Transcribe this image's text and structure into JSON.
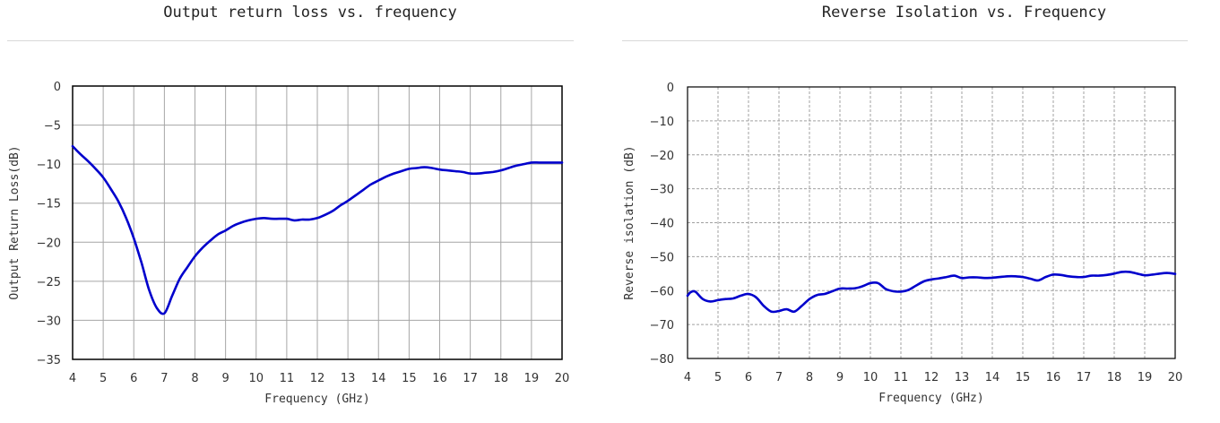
{
  "chart_data": [
    {
      "type": "line",
      "title": "Output return loss vs. frequency",
      "xlabel": "Frequency (GHz)",
      "ylabel": "Output Return Loss(dB)",
      "xlim": [
        4,
        20
      ],
      "ylim": [
        -35,
        0
      ],
      "x_ticks": [
        "4",
        "5",
        "6",
        "7",
        "8",
        "9",
        "10",
        "11",
        "12",
        "13",
        "14",
        "15",
        "16",
        "17",
        "18",
        "19",
        "20"
      ],
      "y_ticks": [
        "0",
        "-5",
        "-10",
        "-15",
        "-20",
        "-25",
        "-30",
        "-35"
      ],
      "grid": "solid",
      "line_color": "#0000cc",
      "series": [
        {
          "x": [
            4,
            4.25,
            4.5,
            4.75,
            5,
            5.25,
            5.5,
            5.75,
            6,
            6.25,
            6.5,
            6.75,
            7,
            7.25,
            7.5,
            7.75,
            8,
            8.25,
            8.5,
            8.75,
            9,
            9.25,
            9.5,
            9.75,
            10,
            10.25,
            10.5,
            10.75,
            11,
            11.25,
            11.5,
            11.75,
            12,
            12.25,
            12.5,
            12.75,
            13,
            13.25,
            13.5,
            13.75,
            14,
            14.25,
            14.5,
            14.75,
            15,
            15.25,
            15.5,
            15.75,
            16,
            16.25,
            16.5,
            16.75,
            17,
            17.25,
            17.5,
            17.75,
            18,
            18.25,
            18.5,
            18.75,
            19,
            19.25,
            19.5,
            19.75,
            20
          ],
          "values": [
            -7.7,
            -8.7,
            -9.6,
            -10.6,
            -11.7,
            -13.2,
            -14.8,
            -16.9,
            -19.5,
            -22.6,
            -26.1,
            -28.4,
            -29.1,
            -26.9,
            -24.7,
            -23.2,
            -21.8,
            -20.7,
            -19.8,
            -19.0,
            -18.5,
            -17.9,
            -17.5,
            -17.2,
            -17.0,
            -16.9,
            -17.0,
            -17.0,
            -17.0,
            -17.2,
            -17.1,
            -17.1,
            -16.9,
            -16.5,
            -16.0,
            -15.3,
            -14.7,
            -14.0,
            -13.3,
            -12.6,
            -12.1,
            -11.6,
            -11.2,
            -10.9,
            -10.6,
            -10.5,
            -10.4,
            -10.5,
            -10.7,
            -10.8,
            -10.9,
            -11.0,
            -11.2,
            -11.2,
            -11.1,
            -11.0,
            -10.8,
            -10.5,
            -10.2,
            -10.0,
            -9.8,
            -9.8,
            -9.8,
            -9.8,
            -9.8
          ]
        }
      ]
    },
    {
      "type": "line",
      "title": "Reverse Isolation vs. Frequency",
      "xlabel": "Frequency (GHz)",
      "ylabel": "Reverse isolation (dB)",
      "xlim": [
        4,
        20
      ],
      "ylim": [
        -80,
        0
      ],
      "x_ticks": [
        "4",
        "5",
        "6",
        "7",
        "8",
        "9",
        "10",
        "11",
        "12",
        "13",
        "14",
        "15",
        "16",
        "17",
        "18",
        "19",
        "20"
      ],
      "y_ticks": [
        "0",
        "-10",
        "-20",
        "-30",
        "-40",
        "-50",
        "-60",
        "-70",
        "-80"
      ],
      "grid": "dashed",
      "line_color": "#0000cc",
      "series": [
        {
          "x": [
            4,
            4.1,
            4.25,
            4.5,
            4.75,
            5,
            5.25,
            5.5,
            5.75,
            6,
            6.25,
            6.5,
            6.75,
            7,
            7.25,
            7.5,
            7.75,
            8,
            8.25,
            8.5,
            8.75,
            9,
            9.25,
            9.5,
            9.75,
            10,
            10.25,
            10.5,
            10.75,
            11,
            11.25,
            11.5,
            11.75,
            12,
            12.25,
            12.5,
            12.75,
            13,
            13.25,
            13.5,
            13.75,
            14,
            14.25,
            14.5,
            14.75,
            15,
            15.25,
            15.5,
            15.75,
            16,
            16.25,
            16.5,
            16.75,
            17,
            17.25,
            17.5,
            17.75,
            18,
            18.25,
            18.5,
            18.75,
            19,
            19.25,
            19.5,
            19.75,
            20
          ],
          "values": [
            -61.5,
            -60.5,
            -60.3,
            -62.5,
            -63.2,
            -62.8,
            -62.5,
            -62.3,
            -61.5,
            -61,
            -62,
            -64.5,
            -66.2,
            -66.0,
            -65.5,
            -66.2,
            -64.5,
            -62.5,
            -61.3,
            -61.0,
            -60.2,
            -59.4,
            -59.4,
            -59.3,
            -58.7,
            -57.8,
            -57.8,
            -59.5,
            -60.2,
            -60.3,
            -59.8,
            -58.5,
            -57.3,
            -56.7,
            -56.4,
            -56.0,
            -55.6,
            -56.3,
            -56.1,
            -56.1,
            -56.3,
            -56.2,
            -56.0,
            -55.8,
            -55.8,
            -56.0,
            -56.5,
            -57.0,
            -56.0,
            -55.3,
            -55.4,
            -55.8,
            -56.0,
            -56.0,
            -55.6,
            -55.6,
            -55.4,
            -55.0,
            -54.5,
            -54.5,
            -55.0,
            -55.5,
            -55.3,
            -55.0,
            -54.8,
            -55.1
          ]
        }
      ]
    }
  ]
}
